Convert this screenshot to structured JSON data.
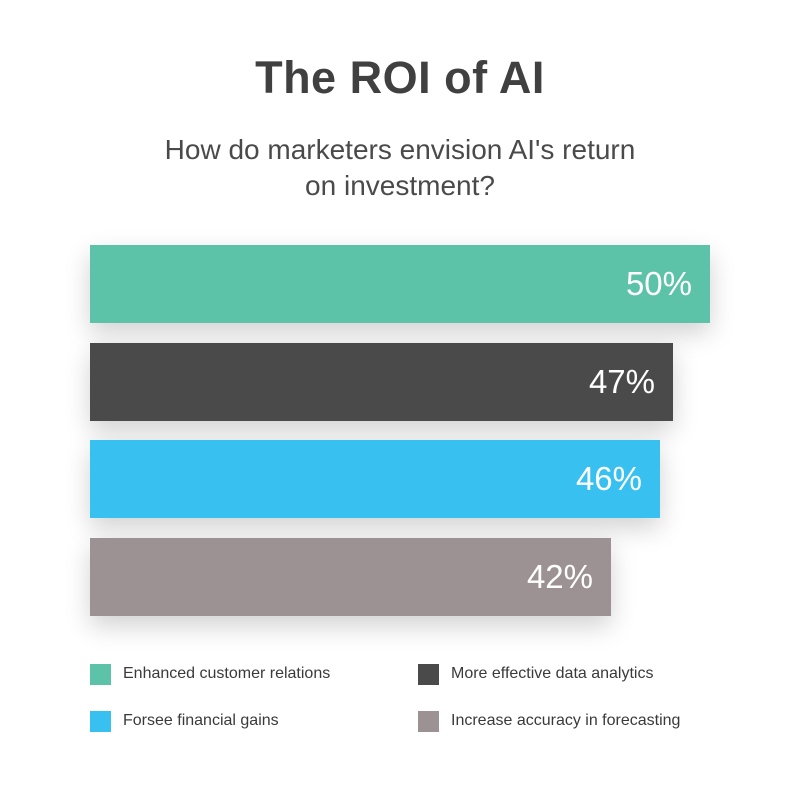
{
  "chart_data": {
    "type": "bar",
    "orientation": "horizontal",
    "title": "The ROI of AI",
    "subtitle": "How do marketers envision AI's return on investment?",
    "categories": [
      "Enhanced customer relations",
      "More effective data analytics",
      "Forsee financial gains",
      "Increase accuracy in forecasting"
    ],
    "values": [
      50,
      47,
      46,
      42
    ],
    "value_labels": [
      "50%",
      "47%",
      "46%",
      "42%"
    ],
    "colors": [
      "#5cc2a8",
      "#4a4a4a",
      "#38c1f0",
      "#9c9293"
    ],
    "unit": "%",
    "grid": false,
    "legend_position": "bottom"
  }
}
